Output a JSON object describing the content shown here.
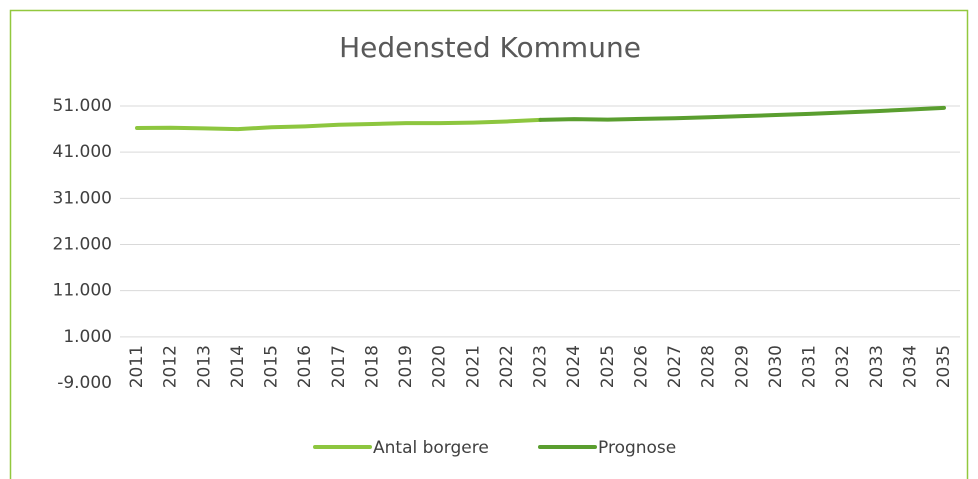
{
  "chart_data": {
    "type": "line",
    "title": "Hedensted Kommune",
    "categories": [
      "2011",
      "2012",
      "2013",
      "2014",
      "2015",
      "2016",
      "2017",
      "2018",
      "2019",
      "2020",
      "2021",
      "2022",
      "2023",
      "2024",
      "2025",
      "2026",
      "2027",
      "2028",
      "2029",
      "2030",
      "2031",
      "2032",
      "2033",
      "2034",
      "2035"
    ],
    "series": [
      {
        "name": "Antal borgere",
        "color": "#8dc63f",
        "values": [
          46240,
          46300,
          46150,
          46000,
          46400,
          46600,
          46950,
          47100,
          47300,
          47300,
          47400,
          47650,
          48000,
          null,
          null,
          null,
          null,
          null,
          null,
          null,
          null,
          null,
          null,
          null,
          null
        ]
      },
      {
        "name": "Prognose",
        "color": "#5a9e2f",
        "values": [
          null,
          null,
          null,
          null,
          null,
          null,
          null,
          null,
          null,
          null,
          null,
          null,
          48000,
          48150,
          48050,
          48200,
          48350,
          48550,
          48800,
          49050,
          49300,
          49600,
          49900,
          50250,
          50600
        ]
      }
    ],
    "ylim": [
      -9000,
      51000
    ],
    "yticks": [
      {
        "value": -9000,
        "label": "-9.000"
      },
      {
        "value": 1000,
        "label": "1.000"
      },
      {
        "value": 11000,
        "label": "11.000"
      },
      {
        "value": 21000,
        "label": "21.000"
      },
      {
        "value": 31000,
        "label": "31.000"
      },
      {
        "value": 41000,
        "label": "41.000"
      },
      {
        "value": 51000,
        "label": "51.000"
      }
    ],
    "grid": true,
    "legend": "bottom"
  }
}
